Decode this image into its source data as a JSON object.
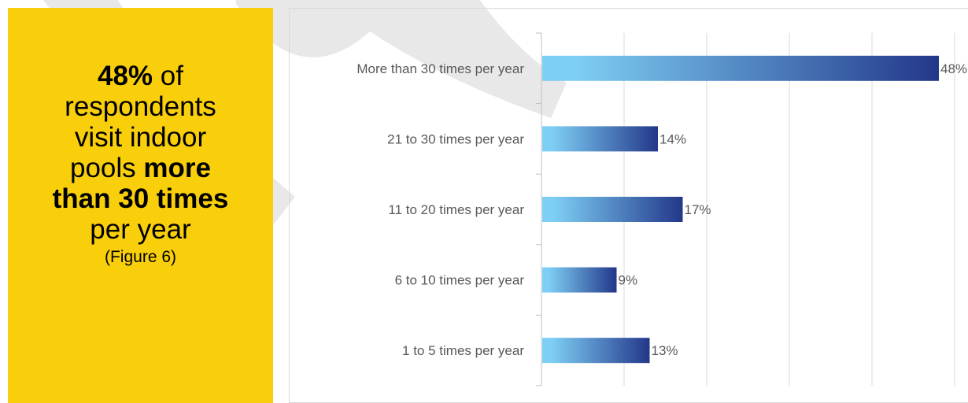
{
  "callout": {
    "line1_value": "48%",
    "line1_rest": " of",
    "line2": "respondents",
    "line3": "visit indoor",
    "line4_pre": "pools ",
    "line4_bold": "more",
    "line5_bold": "than 30 times",
    "line6": "per year",
    "figure_ref": "(Figure 6)",
    "background_color": "#f9cf0b"
  },
  "chart_data": {
    "type": "bar",
    "orientation": "horizontal",
    "categories": [
      "More than 30 times per year",
      "21 to 30 times per year",
      "11 to 20 times per year",
      "6 to 10 times per year",
      "1 to 5 times per year"
    ],
    "values": [
      48,
      14,
      17,
      9,
      13
    ],
    "data_labels": [
      "48%",
      "14%",
      "17%",
      "9%",
      "13%"
    ],
    "xlim": [
      0,
      50
    ],
    "grid": true,
    "bar_gradient": [
      "#7ecff5",
      "#23378a"
    ]
  }
}
